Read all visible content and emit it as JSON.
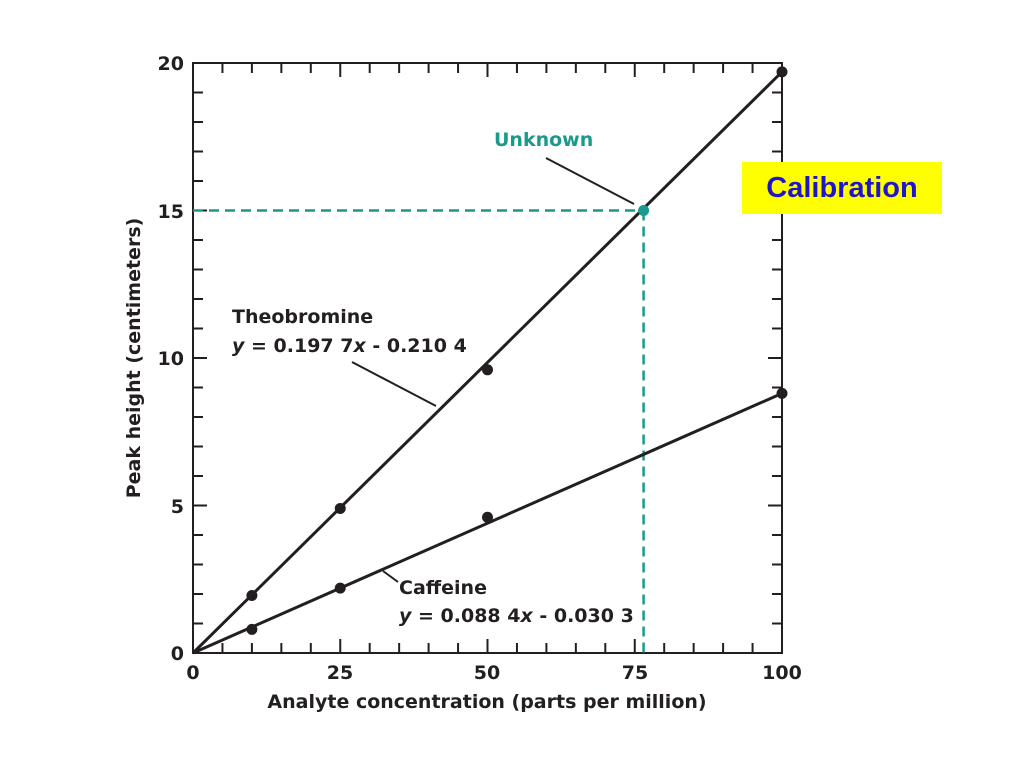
{
  "chart_data": {
    "type": "scatter",
    "xlabel": "Analyte concentration (parts per million)",
    "ylabel": "Peak height (centimeters)",
    "xlim": [
      0,
      100
    ],
    "ylim": [
      0,
      20
    ],
    "x_ticks": [
      "0",
      "25",
      "50",
      "75",
      "100"
    ],
    "y_ticks": [
      "0",
      "5",
      "10",
      "15",
      "20"
    ],
    "grid": false,
    "series": [
      {
        "name": "Theobromine",
        "equation_prefix": "y",
        "equation_rest": " = 0.197 7",
        "equation_var": "x",
        "equation_tail": " - 0.210 4",
        "slope": 0.1977,
        "intercept": -0.2104,
        "points": [
          [
            0,
            0
          ],
          [
            10,
            1.95
          ],
          [
            25,
            4.9
          ],
          [
            50,
            9.6
          ],
          [
            100,
            19.7
          ]
        ],
        "color": "#231f20"
      },
      {
        "name": "Caffeine",
        "equation_prefix": "y",
        "equation_rest": " = 0.088 4",
        "equation_var": "x",
        "equation_tail": " - 0.030 3",
        "slope": 0.0884,
        "intercept": -0.0303,
        "points": [
          [
            0,
            0
          ],
          [
            10,
            0.8
          ],
          [
            25,
            2.2
          ],
          [
            50,
            4.6
          ],
          [
            100,
            8.8
          ]
        ],
        "color": "#231f20"
      }
    ],
    "unknown": {
      "label": "Unknown",
      "x": 76.5,
      "y": 15,
      "color": "#1a9a8c"
    }
  },
  "banner": {
    "text": "Calibration",
    "background": "#ffff00",
    "color": "#1f17c7"
  }
}
